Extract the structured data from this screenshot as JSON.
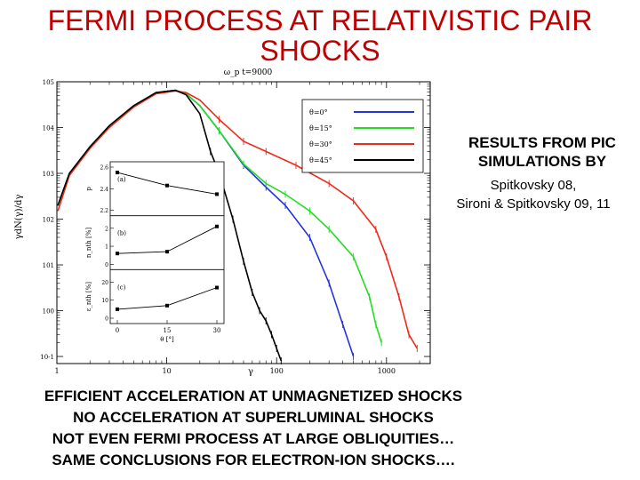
{
  "slide": {
    "title_line1": "FERMI PROCESS AT RELATIVISTIC PAIR",
    "title_line2": "SHOCKS",
    "caption_bold_line1": "RESULTS FROM PIC",
    "caption_bold_line2": "SIMULATIONS BY",
    "caption_line1": "Spitkovsky 08,",
    "caption_line2": "Sironi & Spitkovsky 09, 11",
    "bullets": [
      "EFFICIENT ACCELERATION AT UNMAGNETIZED SHOCKS",
      "NO ACCELERATION AT SUPERLUMINAL SHOCKS",
      "NOT EVEN FERMI PROCESS AT LARGE OBLIQUITIES…",
      "SAME CONCLUSIONS FOR ELECTRON-ION SHOCKS…."
    ]
  },
  "figure": {
    "top_label": "ω_p t=9000",
    "xlabel": "γ",
    "ylabel": "γdN(γ)/dγ",
    "colors": {
      "blue": "#2233dd",
      "green": "#22dd22",
      "red": "#ee2a1a",
      "black": "#000000"
    }
  },
  "chart_data": [
    {
      "type": "line",
      "title": "ω_p t=9000",
      "xlabel": "γ",
      "ylabel": "γdN(γ)/dγ",
      "xscale": "log",
      "yscale": "log",
      "xlim": [
        1,
        2500
      ],
      "ylim": [
        0.07,
        100000
      ],
      "xticks": [
        "1",
        "10",
        "100",
        "1000"
      ],
      "yticks": [
        "10^-1",
        "10^0",
        "10^1",
        "10^2",
        "10^3",
        "10^4",
        "10^5"
      ],
      "legend_position": "top-right",
      "series": [
        {
          "name": "θ=0°",
          "color": "#2233dd",
          "x": [
            1.02,
            1.3,
            2,
            3,
            5,
            8,
            12,
            15,
            20,
            30,
            50,
            80,
            120,
            200,
            300,
            400,
            500
          ],
          "y": [
            200,
            1000,
            3800,
            11000,
            30000,
            58000,
            65000,
            55000,
            30000,
            8500,
            1500,
            500,
            200,
            40,
            4,
            0.5,
            0.1
          ]
        },
        {
          "name": "θ=15°",
          "color": "#22dd22",
          "x": [
            1.02,
            1.3,
            2,
            3,
            5,
            8,
            12,
            15,
            20,
            30,
            50,
            80,
            120,
            200,
            300,
            500,
            700,
            800,
            900
          ],
          "y": [
            200,
            1000,
            3800,
            11000,
            30000,
            58000,
            65000,
            55000,
            30000,
            8500,
            1600,
            600,
            350,
            150,
            60,
            15,
            2,
            0.5,
            0.2
          ]
        },
        {
          "name": "θ=30°",
          "color": "#ee2a1a",
          "x": [
            1.02,
            1.3,
            2,
            3,
            5,
            8,
            12,
            15,
            20,
            30,
            50,
            80,
            150,
            300,
            500,
            800,
            1000,
            1300,
            1600,
            1900
          ],
          "y": [
            150,
            900,
            3500,
            10000,
            28000,
            55000,
            63000,
            58000,
            40000,
            15000,
            5000,
            3000,
            1500,
            600,
            250,
            60,
            15,
            2,
            0.3,
            0.15
          ]
        },
        {
          "name": "θ=45°",
          "color": "#000000",
          "x": [
            1.02,
            1.3,
            2,
            3,
            5,
            8,
            12,
            15,
            20,
            25,
            30,
            40,
            50,
            60,
            70,
            80,
            90,
            100,
            110
          ],
          "y": [
            200,
            1000,
            3800,
            11000,
            30000,
            58000,
            65000,
            52000,
            20000,
            3000,
            1000,
            100,
            12,
            2.5,
            1,
            0.6,
            0.3,
            0.15,
            0.08
          ]
        }
      ]
    },
    {
      "type": "line",
      "ylabel": "p",
      "xlabel": "θ [°]",
      "panel": "(a)",
      "xlim": [
        0,
        30
      ],
      "ylim": [
        2.2,
        2.6
      ],
      "yticks": [
        "2.2",
        "2.4",
        "2.6"
      ],
      "series": [
        {
          "x": [
            0,
            15,
            30
          ],
          "y": [
            2.55,
            2.43,
            2.35
          ]
        }
      ]
    },
    {
      "type": "line",
      "ylabel": "n_nth [%]",
      "panel": "(b)",
      "xlim": [
        0,
        30
      ],
      "ylim": [
        0,
        2.4
      ],
      "yticks": [
        "0",
        "1",
        "2"
      ],
      "series": [
        {
          "x": [
            0,
            15,
            30
          ],
          "y": [
            0.6,
            0.7,
            2.1
          ]
        }
      ]
    },
    {
      "type": "line",
      "ylabel": "ε_nth [%]",
      "xlabel": "θ [°]",
      "panel": "(c)",
      "xlim": [
        0,
        30
      ],
      "ylim": [
        0,
        24
      ],
      "yticks": [
        "0",
        "10",
        "20"
      ],
      "xticks": [
        "0",
        "15",
        "30"
      ],
      "series": [
        {
          "x": [
            0,
            15,
            30
          ],
          "y": [
            5,
            7,
            17
          ]
        }
      ]
    }
  ]
}
